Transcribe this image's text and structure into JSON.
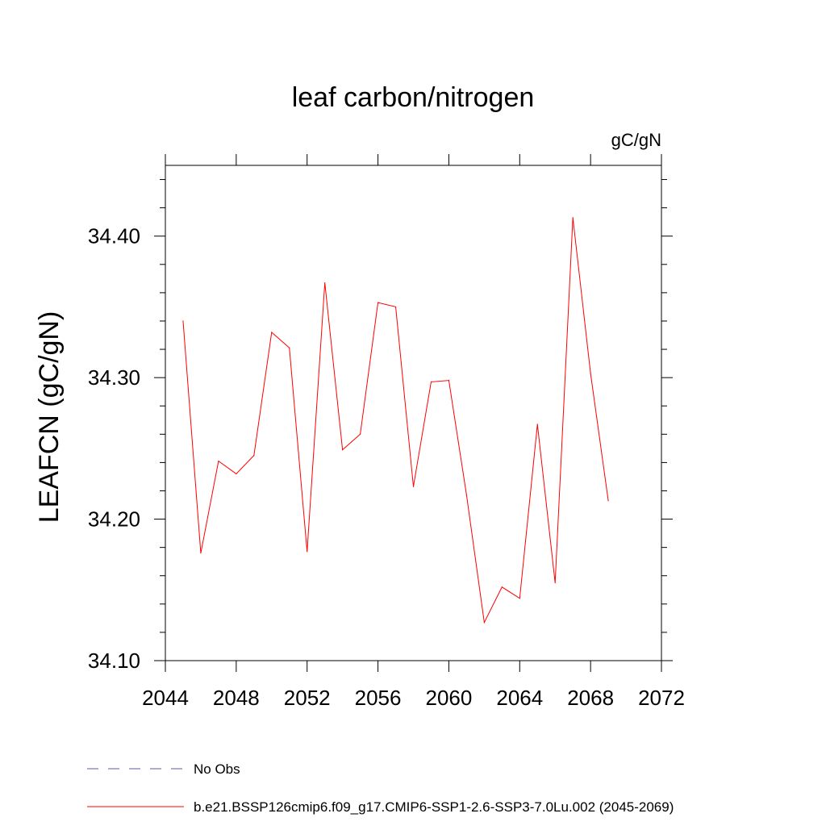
{
  "chart_data": {
    "type": "line",
    "title": "leaf carbon/nitrogen",
    "units_label": "gC/gN",
    "ylabel": "LEAFCN  (gC/gN)",
    "xlabel": "",
    "xlim": [
      2044,
      2072
    ],
    "ylim": [
      34.1,
      34.45
    ],
    "x_ticks": [
      2044,
      2048,
      2052,
      2056,
      2060,
      2064,
      2068,
      2072
    ],
    "x_tick_labels": [
      "2044",
      "2048",
      "2052",
      "2056",
      "2060",
      "2064",
      "2068",
      "2072"
    ],
    "y_ticks": [
      34.1,
      34.2,
      34.3,
      34.4
    ],
    "y_tick_labels": [
      "34.10",
      "34.20",
      "34.30",
      "34.40"
    ],
    "grid": false,
    "legend_position": "bottom",
    "series": [
      {
        "name": "b.e21.BSSP126cmip6.f09_g17.CMIP6-SSP1-2.6-SSP3-7.0Lu.002 (2045-2069)",
        "color": "#ff0000",
        "x": [
          2045,
          2046,
          2047,
          2048,
          2049,
          2050,
          2051,
          2052,
          2053,
          2054,
          2055,
          2056,
          2057,
          2058,
          2059,
          2060,
          2061,
          2062,
          2063,
          2064,
          2065,
          2066,
          2067,
          2068,
          2069
        ],
        "y": [
          34.34,
          34.176,
          34.241,
          34.232,
          34.245,
          34.332,
          34.321,
          34.177,
          34.367,
          34.249,
          34.26,
          34.353,
          34.35,
          34.223,
          34.297,
          34.298,
          34.217,
          34.127,
          34.152,
          34.144,
          34.267,
          34.155,
          34.413,
          34.303,
          34.213
        ]
      }
    ],
    "legend": [
      {
        "label": "No Obs",
        "color": "#6655aa",
        "style": "dashed"
      },
      {
        "label": "b.e21.BSSP126cmip6.f09_g17.CMIP6-SSP1-2.6-SSP3-7.0Lu.002 (2045-2069)",
        "color": "#ff0000",
        "style": "solid"
      }
    ]
  }
}
